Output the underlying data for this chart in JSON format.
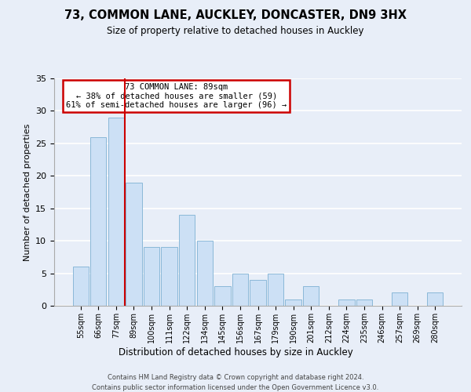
{
  "title1": "73, COMMON LANE, AUCKLEY, DONCASTER, DN9 3HX",
  "title2": "Size of property relative to detached houses in Auckley",
  "xlabel": "Distribution of detached houses by size in Auckley",
  "ylabel": "Number of detached properties",
  "categories": [
    "55sqm",
    "66sqm",
    "77sqm",
    "89sqm",
    "100sqm",
    "111sqm",
    "122sqm",
    "134sqm",
    "145sqm",
    "156sqm",
    "167sqm",
    "179sqm",
    "190sqm",
    "201sqm",
    "212sqm",
    "224sqm",
    "235sqm",
    "246sqm",
    "257sqm",
    "269sqm",
    "280sqm"
  ],
  "values": [
    6,
    26,
    29,
    19,
    9,
    9,
    14,
    10,
    3,
    5,
    4,
    5,
    1,
    3,
    0,
    1,
    1,
    0,
    2,
    0,
    2
  ],
  "bar_color": "#cce0f5",
  "bar_edge_color": "#8ab8d8",
  "highlight_line_color": "#cc0000",
  "annotation_line1": "73 COMMON LANE: 89sqm",
  "annotation_line2": "← 38% of detached houses are smaller (59)",
  "annotation_line3": "61% of semi-detached houses are larger (96) →",
  "annotation_box_edge_color": "#cc0000",
  "annotation_bg_color": "#ffffff",
  "ylim": [
    0,
    35
  ],
  "yticks": [
    0,
    5,
    10,
    15,
    20,
    25,
    30,
    35
  ],
  "footer1": "Contains HM Land Registry data © Crown copyright and database right 2024.",
  "footer2": "Contains public sector information licensed under the Open Government Licence v3.0.",
  "background_color": "#e8eef8",
  "plot_bg_color": "#e8eef8"
}
